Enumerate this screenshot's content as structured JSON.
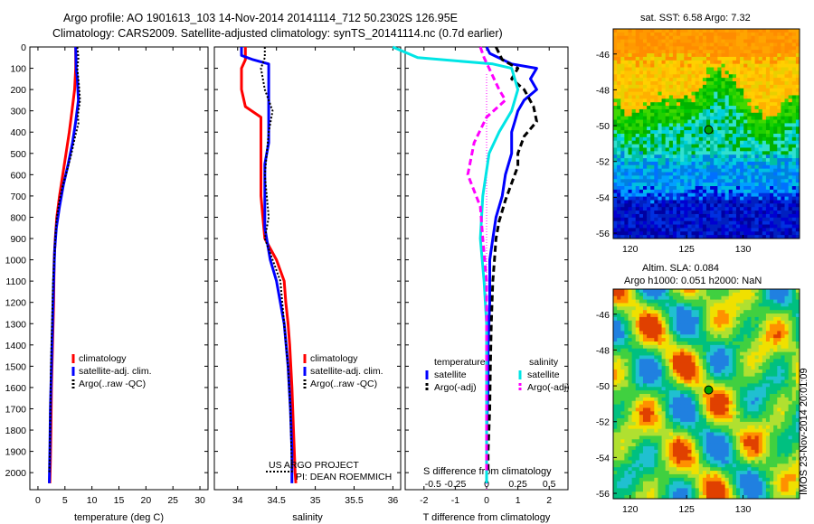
{
  "header": {
    "line1": "Argo profile: AO 1901613_103 14-Nov-2014 20141114_712 50.2302S 126.95E",
    "line2": "Climatology: CARS2009. Satellite-adjusted climatology: synTS_20141114.nc (0.7d earlier)"
  },
  "colors": {
    "climatology": "#ff0000",
    "satellite": "#0000ff",
    "argo": "#000000",
    "sal_satellite": "#00e5e5",
    "sal_argo": "#ff00ff"
  },
  "chart_data": [
    {
      "type": "line",
      "xlabel": "temperature (deg C)",
      "ylabel": "",
      "xlim": [
        -1.5,
        31.5
      ],
      "ylim": [
        2080,
        0
      ],
      "xticks": [
        "0",
        "5",
        "10",
        "15",
        "20",
        "25",
        "30"
      ],
      "yticks": [
        "0",
        "100",
        "200",
        "300",
        "400",
        "500",
        "600",
        "700",
        "800",
        "900",
        "1000",
        "1100",
        "1200",
        "1300",
        "1400",
        "1500",
        "1600",
        "1700",
        "1800",
        "1900",
        "2000"
      ],
      "legend": [
        "climatology",
        "satellite-adj. clim.",
        "Argo(..raw -QC)"
      ],
      "legend_position": "lower-right",
      "series": [
        {
          "name": "climatology",
          "style": "solid",
          "points": [
            [
              7.0,
              0
            ],
            [
              7.0,
              100
            ],
            [
              6.8,
              200
            ],
            [
              6.3,
              300
            ],
            [
              5.8,
              400
            ],
            [
              5.2,
              500
            ],
            [
              4.6,
              600
            ],
            [
              4.0,
              700
            ],
            [
              3.5,
              800
            ],
            [
              3.2,
              900
            ],
            [
              3.0,
              1000
            ],
            [
              2.9,
              1200
            ],
            [
              2.7,
              1400
            ],
            [
              2.5,
              1600
            ],
            [
              2.4,
              1800
            ],
            [
              2.3,
              1950
            ],
            [
              2.2,
              2050
            ]
          ]
        },
        {
          "name": "satellite-adj. clim.",
          "style": "solid",
          "points": [
            [
              7.0,
              0
            ],
            [
              7.1,
              100
            ],
            [
              7.3,
              150
            ],
            [
              7.5,
              250
            ],
            [
              7.0,
              350
            ],
            [
              6.4,
              450
            ],
            [
              5.6,
              550
            ],
            [
              4.7,
              650
            ],
            [
              4.0,
              750
            ],
            [
              3.4,
              850
            ],
            [
              3.1,
              950
            ],
            [
              2.9,
              1100
            ],
            [
              2.7,
              1300
            ],
            [
              2.5,
              1500
            ],
            [
              2.3,
              1700
            ],
            [
              2.2,
              1900
            ],
            [
              2.1,
              2050
            ]
          ]
        },
        {
          "name": "Argo(..raw -QC)",
          "style": "dotted",
          "points": [
            [
              7.3,
              0
            ],
            [
              7.5,
              50
            ],
            [
              7.3,
              100
            ],
            [
              7.6,
              180
            ],
            [
              7.8,
              250
            ],
            [
              7.4,
              320
            ],
            [
              7.5,
              360
            ],
            [
              6.9,
              420
            ],
            [
              6.2,
              500
            ],
            [
              5.4,
              580
            ],
            [
              4.6,
              650
            ],
            [
              4.0,
              720
            ],
            [
              3.5,
              800
            ],
            [
              3.2,
              900
            ],
            [
              3.0,
              1000
            ],
            [
              2.8,
              1100
            ],
            [
              2.7,
              1200
            ],
            [
              2.6,
              1300
            ],
            [
              2.5,
              1400
            ],
            [
              2.4,
              1500
            ],
            [
              2.3,
              1700
            ],
            [
              2.2,
              1900
            ],
            [
              2.1,
              2000
            ]
          ]
        }
      ]
    },
    {
      "type": "line",
      "xlabel": "salinity",
      "xlim": [
        33.7,
        36.1
      ],
      "ylim": [
        2080,
        0
      ],
      "xticks": [
        "34",
        "34.5",
        "35",
        "35.5",
        "36"
      ],
      "legend": [
        "climatology",
        "satellite-adj. clim.",
        "Argo(..raw -QC)"
      ],
      "legend_position": "lower-right",
      "annotation": [
        "US ARGO PROJECT",
        "PI: DEAN ROEMMICH"
      ],
      "series": [
        {
          "name": "climatology",
          "style": "solid",
          "points": [
            [
              34.1,
              0
            ],
            [
              34.1,
              60
            ],
            [
              34.05,
              100
            ],
            [
              34.05,
              200
            ],
            [
              34.1,
              280
            ],
            [
              34.3,
              330
            ],
            [
              34.3,
              500
            ],
            [
              34.3,
              700
            ],
            [
              34.35,
              900
            ],
            [
              34.5,
              1000
            ],
            [
              34.6,
              1100
            ],
            [
              34.62,
              1200
            ],
            [
              34.65,
              1300
            ],
            [
              34.67,
              1400
            ],
            [
              34.7,
              1600
            ],
            [
              34.72,
              1800
            ],
            [
              34.74,
              2000
            ],
            [
              34.75,
              2050
            ]
          ]
        },
        {
          "name": "satellite-adj. clim.",
          "style": "solid",
          "points": [
            [
              34.05,
              0
            ],
            [
              34.05,
              40
            ],
            [
              34.2,
              60
            ],
            [
              34.4,
              80
            ],
            [
              34.4,
              200
            ],
            [
              34.4,
              300
            ],
            [
              34.4,
              450
            ],
            [
              34.35,
              550
            ],
            [
              34.35,
              700
            ],
            [
              34.35,
              850
            ],
            [
              34.42,
              1000
            ],
            [
              34.5,
              1100
            ],
            [
              34.6,
              1300
            ],
            [
              34.65,
              1500
            ],
            [
              34.68,
              1700
            ],
            [
              34.7,
              1900
            ],
            [
              34.7,
              2050
            ]
          ]
        },
        {
          "name": "Argo(..raw -QC)",
          "style": "dotted",
          "points": [
            [
              34.35,
              0
            ],
            [
              34.35,
              50
            ],
            [
              34.3,
              100
            ],
            [
              34.35,
              200
            ],
            [
              34.45,
              300
            ],
            [
              34.4,
              400
            ],
            [
              34.35,
              600
            ],
            [
              34.4,
              800
            ],
            [
              34.35,
              900
            ],
            [
              34.45,
              1000
            ],
            [
              34.55,
              1100
            ],
            [
              34.6,
              1300
            ],
            [
              34.65,
              1500
            ],
            [
              34.68,
              1700
            ],
            [
              34.7,
              2000
            ]
          ]
        }
      ]
    },
    {
      "type": "line",
      "xlabel": "T difference from climatology",
      "xlim": [
        -2.6,
        2.6
      ],
      "ylim": [
        2080,
        0
      ],
      "xticks": [
        "-2",
        "-1",
        "0",
        "1",
        "2"
      ],
      "second_axis_label": "S difference from climatology",
      "second_xticks": [
        "-0.5",
        "-0.25",
        "0",
        "0.25",
        "0.5"
      ],
      "legend": [
        "temperature",
        "satellite",
        "Argo(-adj)",
        "salinity",
        "satellite",
        "Argo(-adj)"
      ],
      "legend_position": "lower-center",
      "series": [
        {
          "name": "temperature satellite",
          "style": "solid",
          "points": [
            [
              0.0,
              0
            ],
            [
              0.1,
              30
            ],
            [
              0.8,
              80
            ],
            [
              1.6,
              100
            ],
            [
              1.4,
              150
            ],
            [
              1.6,
              200
            ],
            [
              1.2,
              250
            ],
            [
              1.0,
              300
            ],
            [
              0.9,
              350
            ],
            [
              0.8,
              400
            ],
            [
              0.8,
              500
            ],
            [
              0.6,
              600
            ],
            [
              0.5,
              700
            ],
            [
              0.3,
              800
            ],
            [
              0.2,
              900
            ],
            [
              0.1,
              1000
            ],
            [
              0.1,
              1200
            ],
            [
              0.05,
              1400
            ],
            [
              0.05,
              1600
            ],
            [
              0.0,
              1800
            ],
            [
              0.0,
              2050
            ]
          ]
        },
        {
          "name": "temperature Argo(-adj)",
          "style": "dashed",
          "points": [
            [
              0.3,
              0
            ],
            [
              0.5,
              60
            ],
            [
              1.0,
              100
            ],
            [
              0.8,
              150
            ],
            [
              1.2,
              200
            ],
            [
              1.5,
              280
            ],
            [
              1.6,
              350
            ],
            [
              1.2,
              420
            ],
            [
              1.0,
              500
            ],
            [
              1.0,
              560
            ],
            [
              0.8,
              640
            ],
            [
              0.6,
              720
            ],
            [
              0.4,
              820
            ],
            [
              0.3,
              900
            ],
            [
              0.25,
              1000
            ],
            [
              0.2,
              1100
            ],
            [
              0.15,
              1300
            ],
            [
              0.12,
              1500
            ],
            [
              0.1,
              1700
            ],
            [
              0.05,
              1900
            ],
            [
              0.05,
              2000
            ]
          ]
        },
        {
          "name": "salinity satellite",
          "style": "solid",
          "points": [
            [
              -0.75,
              0
            ],
            [
              -0.55,
              50
            ],
            [
              0.05,
              80
            ],
            [
              0.2,
              100
            ],
            [
              0.25,
              200
            ],
            [
              0.2,
              300
            ],
            [
              0.1,
              400
            ],
            [
              0.02,
              500
            ],
            [
              -0.03,
              700
            ],
            [
              -0.05,
              900
            ],
            [
              -0.02,
              1100
            ],
            [
              0.0,
              1300
            ],
            [
              0.0,
              1500
            ],
            [
              0.0,
              1700
            ],
            [
              0.0,
              2050
            ]
          ]
        },
        {
          "name": "salinity Argo(-adj)",
          "style": "dashed",
          "points": [
            [
              -0.05,
              0
            ],
            [
              -0.02,
              50
            ],
            [
              0.02,
              100
            ],
            [
              0.1,
              200
            ],
            [
              0.15,
              250
            ],
            [
              0.0,
              330
            ],
            [
              -0.1,
              450
            ],
            [
              -0.15,
              600
            ],
            [
              -0.05,
              750
            ],
            [
              -0.03,
              900
            ],
            [
              0.0,
              1100
            ],
            [
              0.0,
              1300
            ],
            [
              0.0,
              1500
            ],
            [
              0.0,
              1700
            ],
            [
              0.0,
              2000
            ]
          ]
        }
      ]
    },
    {
      "type": "heatmap",
      "title": "sat. SST: 6.58 Argo: 7.32",
      "xlim": [
        118.5,
        135
      ],
      "ylim": [
        -56.3,
        -44.6
      ],
      "xticks": [
        "120",
        "125",
        "130"
      ],
      "yticks": [
        "-46",
        "-48",
        "-50",
        "-52",
        "-54",
        "-56"
      ],
      "marker": [
        126.95,
        -50.23
      ]
    },
    {
      "type": "heatmap",
      "title_line1": "Altim. SLA: 0.084",
      "title_line2": "Argo h1000: 0.051 h2000: NaN",
      "xlim": [
        118.5,
        135
      ],
      "ylim": [
        -56.3,
        -44.6
      ],
      "xticks": [
        "120",
        "125",
        "130"
      ],
      "yticks": [
        "-46",
        "-48",
        "-50",
        "-52",
        "-54",
        "-56"
      ],
      "marker": [
        126.95,
        -50.23
      ]
    }
  ],
  "side_label": "IMOS 23-Nov-2014 20:01:09"
}
